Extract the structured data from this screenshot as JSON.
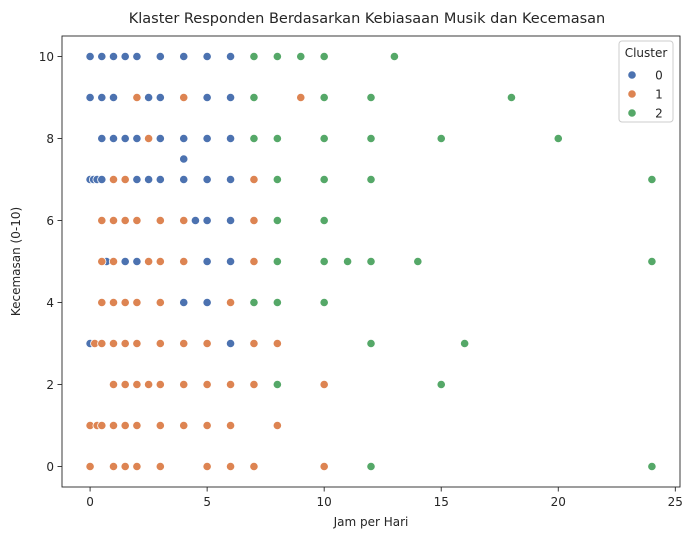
{
  "chart_data": {
    "type": "scatter",
    "title": "Klaster Responden Berdasarkan Kebiasaan Musik dan Kecemasan",
    "xlabel": "Jam per Hari",
    "ylabel": "Kecemasan (0-10)",
    "xlim": [
      -1.2,
      25.2
    ],
    "ylim": [
      -0.5,
      10.5
    ],
    "xticks": [
      0,
      5,
      10,
      15,
      20,
      25
    ],
    "yticks": [
      0,
      2,
      4,
      6,
      8,
      10
    ],
    "grid": false,
    "legend": {
      "title": "Cluster",
      "placement": "top-right"
    },
    "series": [
      {
        "name": "0",
        "color": "#4c72b0",
        "points": [
          [
            0,
            10
          ],
          [
            0.5,
            10
          ],
          [
            1,
            10
          ],
          [
            1.5,
            10
          ],
          [
            2,
            10
          ],
          [
            3,
            10
          ],
          [
            4,
            10
          ],
          [
            5,
            10
          ],
          [
            6,
            10
          ],
          [
            0,
            9
          ],
          [
            0.5,
            9
          ],
          [
            1,
            9
          ],
          [
            2.5,
            9
          ],
          [
            3,
            9
          ],
          [
            5,
            9
          ],
          [
            6,
            9
          ],
          [
            0.5,
            8
          ],
          [
            1,
            8
          ],
          [
            1.5,
            8
          ],
          [
            2,
            8
          ],
          [
            3,
            8
          ],
          [
            4,
            8
          ],
          [
            5,
            8
          ],
          [
            6,
            8
          ],
          [
            4,
            7.5
          ],
          [
            0,
            7
          ],
          [
            0.15,
            7
          ],
          [
            0.3,
            7
          ],
          [
            0.5,
            7
          ],
          [
            2,
            7
          ],
          [
            2.5,
            7
          ],
          [
            3,
            7
          ],
          [
            4,
            7
          ],
          [
            5,
            7
          ],
          [
            6,
            7
          ],
          [
            4.5,
            6
          ],
          [
            5,
            6
          ],
          [
            6,
            6
          ],
          [
            0.7,
            5
          ],
          [
            1.5,
            5
          ],
          [
            2,
            5
          ],
          [
            5,
            5
          ],
          [
            6,
            5
          ],
          [
            4,
            4
          ],
          [
            5,
            4
          ],
          [
            0,
            3
          ],
          [
            6,
            3
          ]
        ]
      },
      {
        "name": "1",
        "color": "#dd8452",
        "points": [
          [
            2,
            9
          ],
          [
            4,
            9
          ],
          [
            9,
            9
          ],
          [
            2.5,
            8
          ],
          [
            1,
            7
          ],
          [
            1.5,
            7
          ],
          [
            7,
            7
          ],
          [
            0.5,
            6
          ],
          [
            1,
            6
          ],
          [
            1.5,
            6
          ],
          [
            2,
            6
          ],
          [
            3,
            6
          ],
          [
            4,
            6
          ],
          [
            7,
            6
          ],
          [
            0.5,
            5
          ],
          [
            1,
            5
          ],
          [
            2.5,
            5
          ],
          [
            3,
            5
          ],
          [
            4,
            5
          ],
          [
            7,
            5
          ],
          [
            0.5,
            4
          ],
          [
            1,
            4
          ],
          [
            1.5,
            4
          ],
          [
            2,
            4
          ],
          [
            3,
            4
          ],
          [
            6,
            4
          ],
          [
            0.2,
            3
          ],
          [
            0.5,
            3
          ],
          [
            1,
            3
          ],
          [
            1.5,
            3
          ],
          [
            2,
            3
          ],
          [
            3,
            3
          ],
          [
            4,
            3
          ],
          [
            5,
            3
          ],
          [
            7,
            3
          ],
          [
            8,
            3
          ],
          [
            1,
            2
          ],
          [
            1.5,
            2
          ],
          [
            2,
            2
          ],
          [
            2.5,
            2
          ],
          [
            3,
            2
          ],
          [
            4,
            2
          ],
          [
            5,
            2
          ],
          [
            6,
            2
          ],
          [
            7,
            2
          ],
          [
            10,
            2
          ],
          [
            0,
            1
          ],
          [
            0.3,
            1
          ],
          [
            0.5,
            1
          ],
          [
            1,
            1
          ],
          [
            1.5,
            1
          ],
          [
            2,
            1
          ],
          [
            3,
            1
          ],
          [
            4,
            1
          ],
          [
            5,
            1
          ],
          [
            6,
            1
          ],
          [
            8,
            1
          ],
          [
            0,
            0
          ],
          [
            1,
            0
          ],
          [
            1.5,
            0
          ],
          [
            2,
            0
          ],
          [
            3,
            0
          ],
          [
            5,
            0
          ],
          [
            6,
            0
          ],
          [
            7,
            0
          ],
          [
            10,
            0
          ]
        ]
      },
      {
        "name": "2",
        "color": "#55a868",
        "points": [
          [
            7,
            10
          ],
          [
            8,
            10
          ],
          [
            9,
            10
          ],
          [
            10,
            10
          ],
          [
            13,
            10
          ],
          [
            7,
            9
          ],
          [
            10,
            9
          ],
          [
            12,
            9
          ],
          [
            18,
            9
          ],
          [
            7,
            8
          ],
          [
            8,
            8
          ],
          [
            10,
            8
          ],
          [
            12,
            8
          ],
          [
            15,
            8
          ],
          [
            20,
            8
          ],
          [
            8,
            7
          ],
          [
            10,
            7
          ],
          [
            12,
            7
          ],
          [
            24,
            7
          ],
          [
            8,
            6
          ],
          [
            10,
            6
          ],
          [
            8,
            5
          ],
          [
            10,
            5
          ],
          [
            11,
            5
          ],
          [
            12,
            5
          ],
          [
            14,
            5
          ],
          [
            24,
            5
          ],
          [
            7,
            4
          ],
          [
            8,
            4
          ],
          [
            10,
            4
          ],
          [
            12,
            3
          ],
          [
            16,
            3
          ],
          [
            8,
            2
          ],
          [
            15,
            2
          ],
          [
            12,
            0
          ],
          [
            24,
            0
          ]
        ]
      }
    ]
  }
}
